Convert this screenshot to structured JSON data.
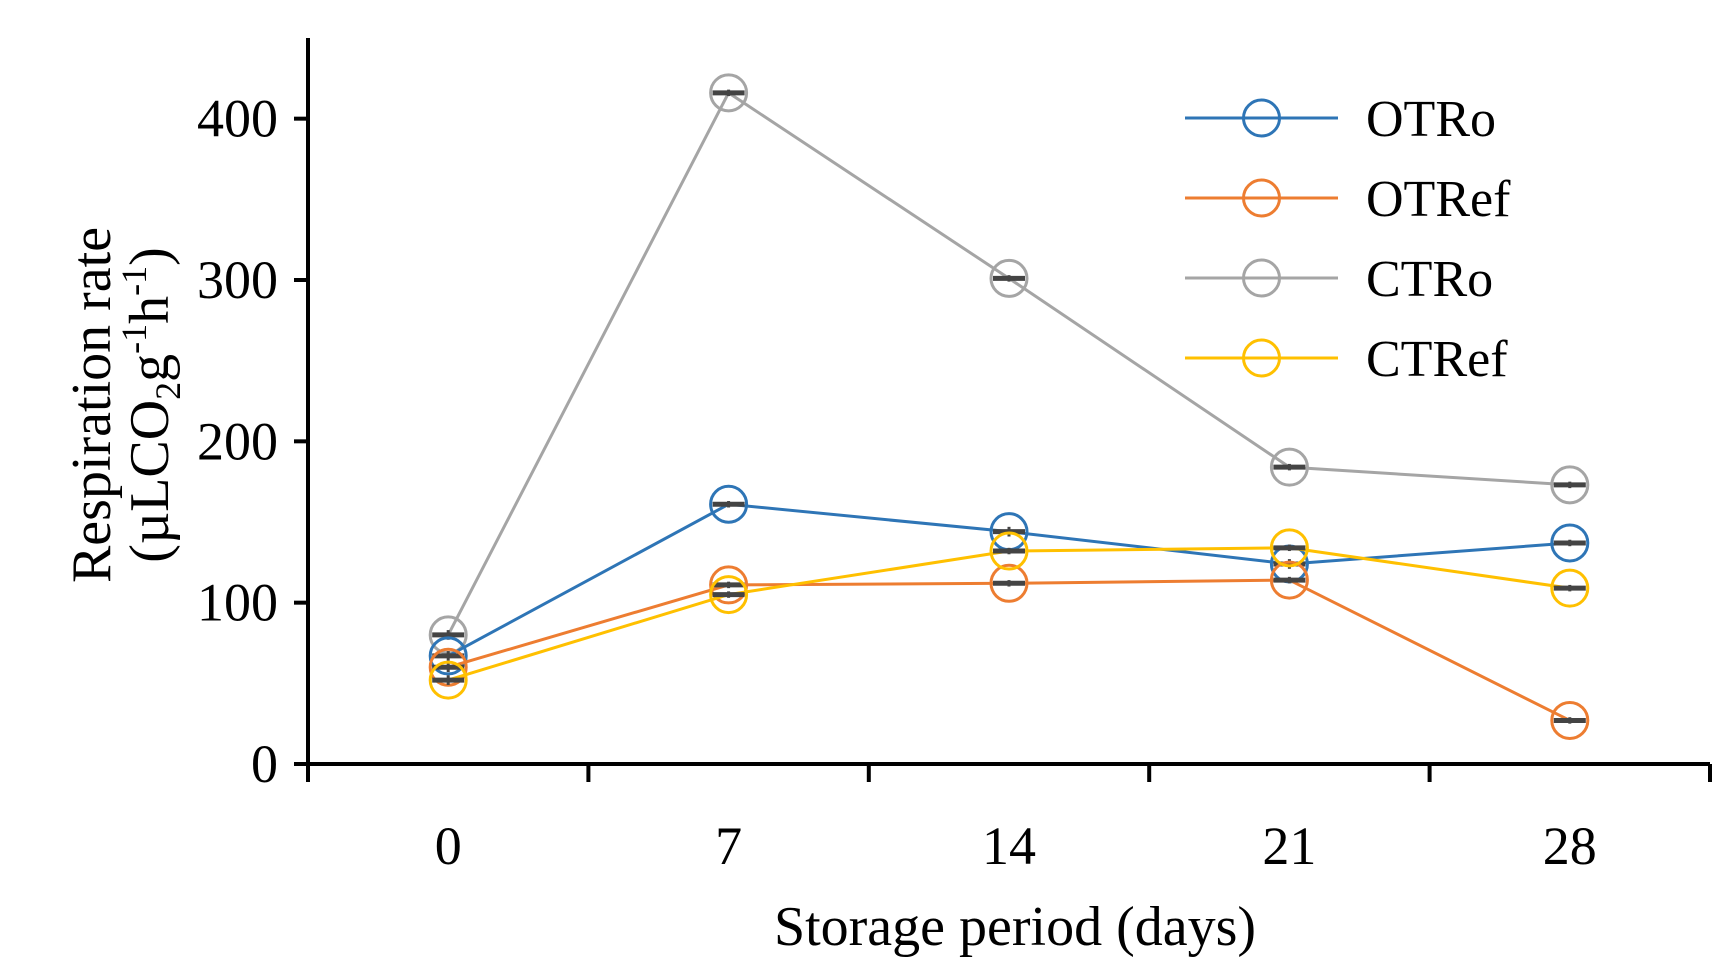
{
  "chart_data": {
    "type": "line",
    "title": "",
    "xlabel": "Storage period (days)",
    "ylabel_line1": "Respiration rate",
    "ylabel_line2": {
      "open": "(µLCO",
      "sub": "2",
      "mid": "g",
      "sup1": "-1",
      "h": "h",
      "sup2": "-1",
      "close": ")"
    },
    "categories": [
      "0",
      "7",
      "14",
      "21",
      "28"
    ],
    "ylim": [
      0,
      450
    ],
    "yticks": [
      {
        "value": 0,
        "label": "0"
      },
      {
        "value": 100,
        "label": "100"
      },
      {
        "value": 200,
        "label": "200"
      },
      {
        "value": 300,
        "label": "300"
      },
      {
        "value": 400,
        "label": "400"
      }
    ],
    "grid": false,
    "legend_position": "top-right",
    "error_bars": true,
    "series": [
      {
        "name": "OTRo",
        "color": "#2E75B6",
        "values": [
          67,
          161,
          144,
          124,
          137
        ],
        "errors": [
          3,
          2,
          3,
          3,
          2
        ]
      },
      {
        "name": "OTRef",
        "color": "#ED7D31",
        "values": [
          60,
          111,
          112,
          114,
          27
        ],
        "errors": [
          3,
          2,
          2,
          2,
          2
        ]
      },
      {
        "name": "CTRo",
        "color": "#A5A5A5",
        "values": [
          80,
          416,
          301,
          184,
          173
        ],
        "errors": [
          3,
          2,
          2,
          2,
          2
        ]
      },
      {
        "name": "CTRef",
        "color": "#FFC000",
        "values": [
          52,
          105,
          132,
          134,
          109
        ],
        "errors": [
          3,
          2,
          2,
          2,
          2
        ]
      }
    ]
  }
}
